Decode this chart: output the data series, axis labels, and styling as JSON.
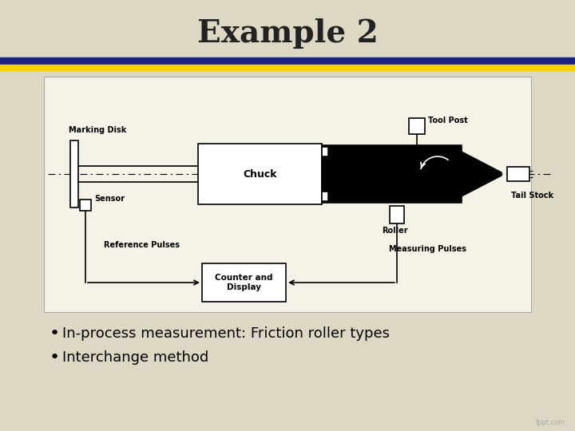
{
  "title": "Example 2",
  "bullet1": "In-process measurement: Friction roller types",
  "bullet2": "Interchange method",
  "bg_color": "#ddd8c4",
  "content_bg": "#f0ede0",
  "title_color": "#222222",
  "bar1_color": "#1a237e",
  "bar2_color": "#f9d000",
  "diagram_labels": {
    "marking_disk": "Marking Disk",
    "chuck": "Chuck",
    "tool_post": "Tool Post",
    "tail_stock": "Tail Stock",
    "sensor": "Sensor",
    "roller": "Roller",
    "reference_pulses": "Reference Pulses",
    "measuring_pulses": "Measuring Pulses",
    "counter_display": "Counter and\nDisplay"
  }
}
